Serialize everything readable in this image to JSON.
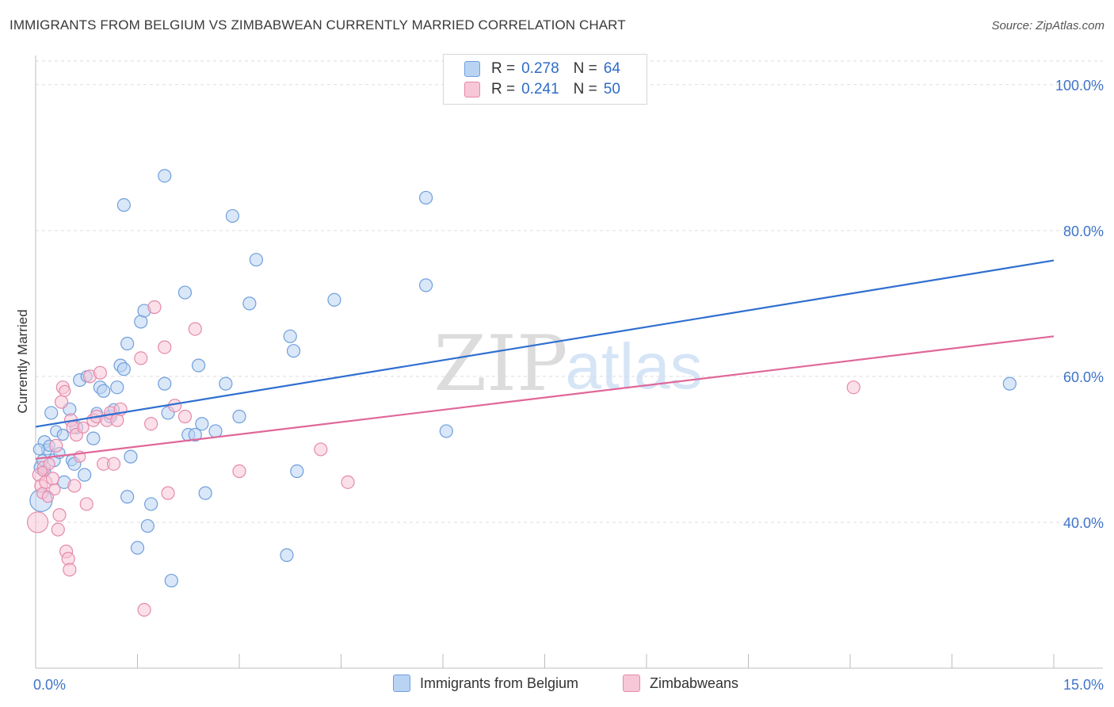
{
  "header": {
    "title": "IMMIGRANTS FROM BELGIUM VS ZIMBABWEAN CURRENTLY MARRIED CORRELATION CHART",
    "source": "Source: ZipAtlas.com"
  },
  "watermark": {
    "zip": "ZIP",
    "atlas": "atlas"
  },
  "colors": {
    "blue_fill": "#b9d3f3",
    "blue_stroke": "#6f9fdc",
    "blue_line": "#2f6fd0",
    "pink_fill": "#f8c7d7",
    "pink_stroke": "#e48aab",
    "pink_line": "#e0679a",
    "axis_text": "#3f74c9"
  },
  "legend_top": {
    "rows": [
      {
        "r_label": "R =",
        "r_value": "0.278",
        "n_label": "N =",
        "n_value": "64"
      },
      {
        "r_label": "R =",
        "r_value": "0.241",
        "n_label": "N =",
        "n_value": "50"
      }
    ]
  },
  "legend_bottom": [
    "Immigrants from Belgium",
    "Zimbabweans"
  ],
  "chart_data": {
    "type": "scatter",
    "ylabel": "Currently Married",
    "xlim": [
      0,
      15
    ],
    "ylim": [
      20,
      104
    ],
    "y_ticks": [
      {
        "value": 40,
        "label": "40.0%"
      },
      {
        "value": 60,
        "label": "60.0%"
      },
      {
        "value": 80,
        "label": "80.0%"
      },
      {
        "value": 100,
        "label": "100.0%"
      }
    ],
    "x_tick_labels": [
      {
        "value": 0,
        "label": "0.0%"
      },
      {
        "value": 15,
        "label": "15.0%"
      }
    ],
    "x_minor_ticks": [
      0,
      1.5,
      3,
      4.5,
      6,
      7.5,
      9,
      10.5,
      12,
      13.5,
      15
    ],
    "grid": true,
    "series": [
      {
        "name": "Immigrants from Belgium",
        "color": "blue",
        "r": 0.278,
        "n": 64,
        "trend": {
          "x": [
            0,
            15
          ],
          "y": [
            53.1,
            75.9
          ]
        },
        "points": [
          [
            0.07,
            47.5,
            8
          ],
          [
            0.1,
            48.5,
            7
          ],
          [
            0.13,
            51,
            8
          ],
          [
            0.17,
            50,
            7
          ],
          [
            0.2,
            50.5,
            7
          ],
          [
            0.23,
            55,
            8
          ],
          [
            0.27,
            48.5,
            8
          ],
          [
            0.3,
            52.5,
            7
          ],
          [
            0.35,
            49.5,
            7
          ],
          [
            0.4,
            52,
            7
          ],
          [
            0.42,
            45.5,
            8
          ],
          [
            0.5,
            55.5,
            8
          ],
          [
            0.53,
            48.5,
            7
          ],
          [
            0.57,
            48,
            8
          ],
          [
            0.6,
            53,
            8
          ],
          [
            0.65,
            59.5,
            8
          ],
          [
            0.72,
            46.5,
            8
          ],
          [
            0.75,
            60,
            7
          ],
          [
            0.85,
            51.5,
            8
          ],
          [
            0.9,
            55,
            7
          ],
          [
            0.95,
            58.5,
            8
          ],
          [
            1.0,
            58,
            8
          ],
          [
            1.1,
            54.5,
            8
          ],
          [
            1.15,
            55.5,
            7
          ],
          [
            1.2,
            58.5,
            8
          ],
          [
            1.25,
            61.5,
            8
          ],
          [
            1.3,
            61,
            8
          ],
          [
            1.35,
            43.5,
            8
          ],
          [
            1.4,
            49,
            8
          ],
          [
            1.3,
            83.5,
            8
          ],
          [
            1.35,
            64.5,
            8
          ],
          [
            1.55,
            67.5,
            8
          ],
          [
            1.6,
            69,
            8
          ],
          [
            1.7,
            42.5,
            8
          ],
          [
            1.65,
            39.5,
            8
          ],
          [
            1.5,
            36.5,
            8
          ],
          [
            1.9,
            59,
            8
          ],
          [
            1.95,
            55,
            8
          ],
          [
            1.9,
            87.5,
            8
          ],
          [
            2.0,
            32,
            8
          ],
          [
            2.2,
            71.5,
            8
          ],
          [
            2.25,
            52,
            8
          ],
          [
            2.35,
            52,
            8
          ],
          [
            2.4,
            61.5,
            8
          ],
          [
            2.45,
            53.5,
            8
          ],
          [
            2.5,
            44,
            8
          ],
          [
            2.65,
            52.5,
            8
          ],
          [
            2.8,
            59,
            8
          ],
          [
            2.9,
            82,
            8
          ],
          [
            3.0,
            54.5,
            8
          ],
          [
            3.15,
            70,
            8
          ],
          [
            3.25,
            76,
            8
          ],
          [
            3.75,
            65.5,
            8
          ],
          [
            3.8,
            63.5,
            8
          ],
          [
            3.7,
            35.5,
            8
          ],
          [
            3.85,
            47,
            8
          ],
          [
            4.4,
            70.5,
            8
          ],
          [
            5.75,
            84.5,
            8
          ],
          [
            5.75,
            72.5,
            8
          ],
          [
            6.05,
            52.5,
            8
          ],
          [
            14.35,
            59,
            8
          ],
          [
            0.08,
            43,
            14
          ],
          [
            0.05,
            50,
            7
          ],
          [
            0.15,
            47,
            6
          ]
        ]
      },
      {
        "name": "Zimbabweans",
        "color": "pink",
        "r": 0.241,
        "n": 50,
        "trend": {
          "x": [
            0,
            15
          ],
          "y": [
            48.7,
            65.5
          ]
        },
        "points": [
          [
            0.05,
            46.5,
            8
          ],
          [
            0.08,
            45,
            8
          ],
          [
            0.1,
            44,
            7
          ],
          [
            0.12,
            47.5,
            8
          ],
          [
            0.15,
            45.5,
            8
          ],
          [
            0.18,
            43.5,
            7
          ],
          [
            0.2,
            48,
            7
          ],
          [
            0.25,
            46,
            8
          ],
          [
            0.28,
            44.5,
            7
          ],
          [
            0.3,
            50.5,
            8
          ],
          [
            0.33,
            39,
            8
          ],
          [
            0.35,
            41,
            8
          ],
          [
            0.38,
            56.5,
            8
          ],
          [
            0.4,
            58.5,
            8
          ],
          [
            0.43,
            58,
            7
          ],
          [
            0.45,
            36,
            8
          ],
          [
            0.48,
            35,
            8
          ],
          [
            0.5,
            33.5,
            8
          ],
          [
            0.52,
            54,
            8
          ],
          [
            0.55,
            53,
            8
          ],
          [
            0.57,
            45,
            8
          ],
          [
            0.6,
            52,
            8
          ],
          [
            0.65,
            49,
            7
          ],
          [
            0.7,
            53,
            7
          ],
          [
            0.75,
            42.5,
            8
          ],
          [
            0.8,
            60,
            8
          ],
          [
            0.85,
            54,
            8
          ],
          [
            0.9,
            54.5,
            8
          ],
          [
            0.95,
            60.5,
            8
          ],
          [
            1.0,
            48,
            8
          ],
          [
            1.05,
            54,
            8
          ],
          [
            1.1,
            55,
            8
          ],
          [
            1.15,
            48,
            8
          ],
          [
            1.2,
            54,
            8
          ],
          [
            1.25,
            55.5,
            8
          ],
          [
            1.55,
            62.5,
            8
          ],
          [
            1.6,
            28,
            8
          ],
          [
            1.7,
            53.5,
            8
          ],
          [
            1.75,
            69.5,
            8
          ],
          [
            1.9,
            64,
            8
          ],
          [
            1.95,
            44,
            8
          ],
          [
            2.05,
            56,
            8
          ],
          [
            2.2,
            54.5,
            8
          ],
          [
            2.35,
            66.5,
            8
          ],
          [
            3.0,
            47,
            8
          ],
          [
            4.2,
            50,
            8
          ],
          [
            4.6,
            45.5,
            8
          ],
          [
            12.05,
            58.5,
            8
          ],
          [
            0.03,
            40,
            13
          ],
          [
            0.1,
            47,
            6
          ]
        ]
      }
    ]
  }
}
